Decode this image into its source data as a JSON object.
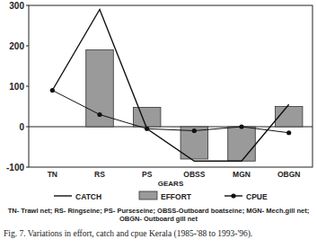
{
  "chart_data": {
    "type": "bar",
    "x_label": "GEARS",
    "categories": [
      "TN",
      "RS",
      "PS",
      "OBSS",
      "MGN",
      "OBGN"
    ],
    "series": [
      {
        "name": "CATCH",
        "type": "line",
        "color": "#111111",
        "values": [
          90,
          290,
          -5,
          -85,
          -85,
          55
        ]
      },
      {
        "name": "EFFORT",
        "type": "bar",
        "color": "#9a9a9a",
        "values": [
          0,
          190,
          48,
          -80,
          -85,
          50
        ]
      },
      {
        "name": "CPUE",
        "type": "line",
        "marker": "circle",
        "color": "#111111",
        "values": [
          90,
          30,
          -5,
          -10,
          0,
          -15
        ]
      }
    ],
    "ylim": [
      -100,
      300
    ],
    "yticks": [
      -100,
      0,
      100,
      200,
      300
    ],
    "grid": false,
    "legend": "bottom",
    "notes": "TN- Trawl net; RS- Ringseine; PS- Purseseine; OBSS-Outboard boatseine; MGN- Mech.gill net; OBGN- Outboard gill net",
    "caption": "Fig. 7. Variations in effort, catch and cpue Kerala (1985-'88 to 1993-'96)."
  }
}
